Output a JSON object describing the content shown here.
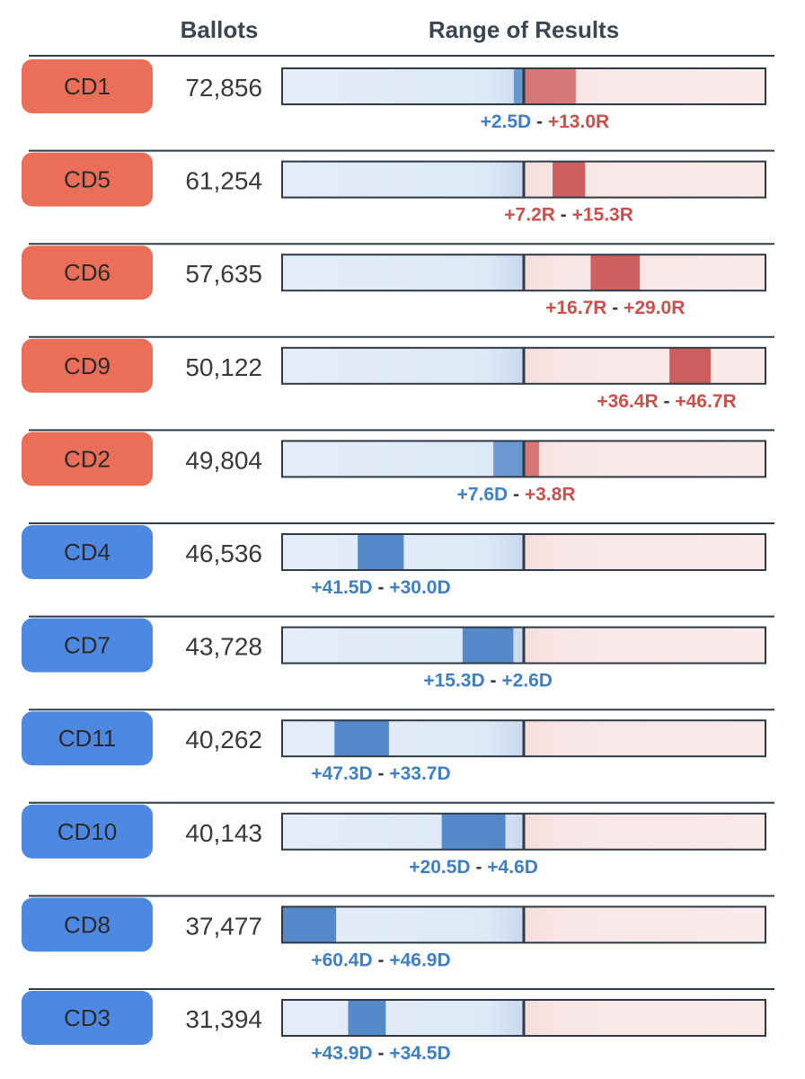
{
  "header": {
    "ballots": "Ballots",
    "range": "Range of Results"
  },
  "colors": {
    "dem_badge": "#3e7ee0",
    "rep_badge": "#e8624a",
    "dem_text": "#3f7fc4",
    "rep_text": "#c9504c",
    "dem_bar": "#4a80c6",
    "rep_bar": "#c95452",
    "dem_track": "#e3edf7",
    "rep_track": "#f9e6e6",
    "rule": "#2e3a45"
  },
  "chart_data": {
    "type": "range",
    "title": "Range of Results",
    "axis": {
      "min": -60.4,
      "max": 60.4,
      "center": 0,
      "note": "negative = D margin, positive = R margin"
    },
    "rows": [
      {
        "district": "CD1",
        "party": "R",
        "ballots": "72,856",
        "low": -2.5,
        "high": 13.0,
        "low_label": "+2.5D",
        "high_label": "+13.0R"
      },
      {
        "district": "CD5",
        "party": "R",
        "ballots": "61,254",
        "low": 7.2,
        "high": 15.3,
        "low_label": "+7.2R",
        "high_label": "+15.3R"
      },
      {
        "district": "CD6",
        "party": "R",
        "ballots": "57,635",
        "low": 16.7,
        "high": 29.0,
        "low_label": "+16.7R",
        "high_label": "+29.0R"
      },
      {
        "district": "CD9",
        "party": "R",
        "ballots": "50,122",
        "low": 36.4,
        "high": 46.7,
        "low_label": "+36.4R",
        "high_label": "+46.7R"
      },
      {
        "district": "CD2",
        "party": "R",
        "ballots": "49,804",
        "low": -7.6,
        "high": 3.8,
        "low_label": "+7.6D",
        "high_label": "+3.8R"
      },
      {
        "district": "CD4",
        "party": "D",
        "ballots": "46,536",
        "low": -41.5,
        "high": -30.0,
        "low_label": "+41.5D",
        "high_label": "+30.0D"
      },
      {
        "district": "CD7",
        "party": "D",
        "ballots": "43,728",
        "low": -15.3,
        "high": -2.6,
        "low_label": "+15.3D",
        "high_label": "+2.6D"
      },
      {
        "district": "CD11",
        "party": "D",
        "ballots": "40,262",
        "low": -47.3,
        "high": -33.7,
        "low_label": "+47.3D",
        "high_label": "+33.7D"
      },
      {
        "district": "CD10",
        "party": "D",
        "ballots": "40,143",
        "low": -20.5,
        "high": -4.6,
        "low_label": "+20.5D",
        "high_label": "+4.6D"
      },
      {
        "district": "CD8",
        "party": "D",
        "ballots": "37,477",
        "low": -60.4,
        "high": -46.9,
        "low_label": "+60.4D",
        "high_label": "+46.9D"
      },
      {
        "district": "CD3",
        "party": "D",
        "ballots": "31,394",
        "low": -43.9,
        "high": -34.5,
        "low_label": "+43.9D",
        "high_label": "+34.5D"
      }
    ]
  }
}
